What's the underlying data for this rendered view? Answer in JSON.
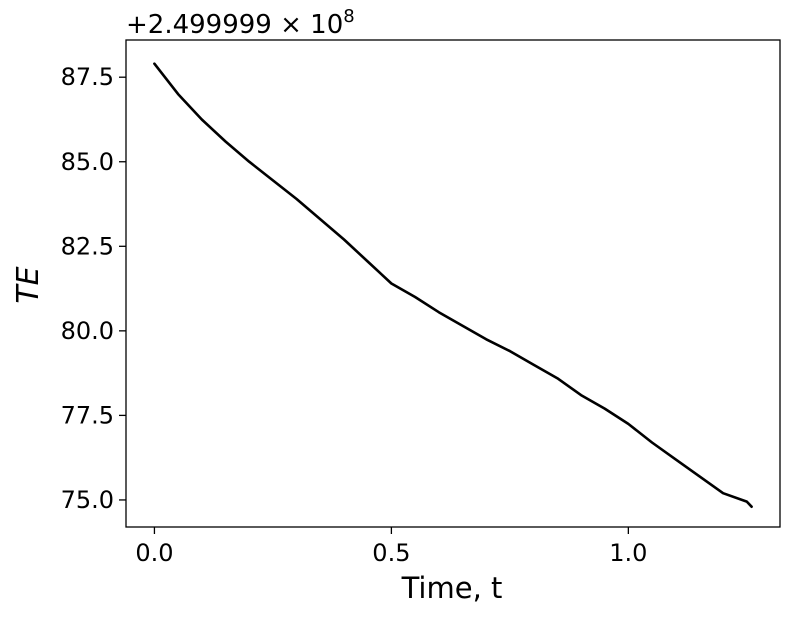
{
  "chart_data": {
    "type": "line",
    "title": "",
    "xlabel": "Time, t",
    "ylabel": "TE",
    "offset_text": {
      "prefix": "+2.499999 × 10",
      "exponent": "8"
    },
    "xlim": [
      -0.06,
      1.32
    ],
    "ylim": [
      74.2,
      88.6
    ],
    "x_ticks": [
      0.0,
      0.5,
      1.0
    ],
    "x_tick_labels": [
      "0.0",
      "0.5",
      "1.0"
    ],
    "y_ticks": [
      75.0,
      77.5,
      80.0,
      82.5,
      85.0,
      87.5
    ],
    "y_tick_labels": [
      "75.0",
      "77.5",
      "80.0",
      "82.5",
      "85.0",
      "87.5"
    ],
    "grid": false,
    "series": [
      {
        "color": "#000000",
        "x": [
          0.0,
          0.05,
          0.1,
          0.15,
          0.2,
          0.25,
          0.3,
          0.35,
          0.4,
          0.45,
          0.5,
          0.55,
          0.6,
          0.65,
          0.7,
          0.75,
          0.8,
          0.85,
          0.9,
          0.95,
          1.0,
          1.05,
          1.1,
          1.15,
          1.2,
          1.25,
          1.26
        ],
        "y": [
          87.9,
          87.0,
          86.25,
          85.6,
          85.0,
          84.45,
          83.9,
          83.3,
          82.7,
          82.05,
          81.4,
          81.0,
          80.55,
          80.15,
          79.75,
          79.4,
          79.0,
          78.6,
          78.1,
          77.7,
          77.25,
          76.7,
          76.2,
          75.7,
          75.2,
          74.95,
          74.8
        ]
      }
    ]
  }
}
